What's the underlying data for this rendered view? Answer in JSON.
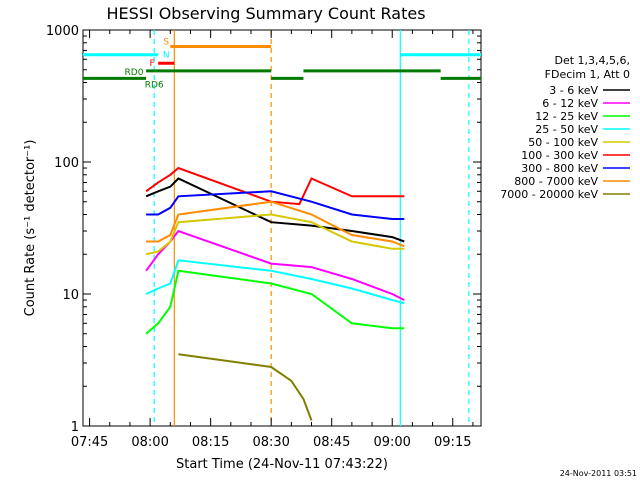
{
  "chart_data": {
    "type": "line",
    "title": "HESSI Observing Summary Count Rates",
    "xlabel": "Start Time (24-Nov-11 07:43:22)",
    "ylabel": "Count Rate (s⁻¹ detector⁻¹)",
    "y_scale": "log",
    "ylim": [
      1,
      1000
    ],
    "xlim": [
      "07:43:22",
      "09:22:00"
    ],
    "x_tick_labels": [
      "07:45",
      "08:00",
      "08:15",
      "08:30",
      "08:45",
      "09:00",
      "09:15"
    ],
    "y_tick_labels": [
      "1",
      "10",
      "100",
      "1000"
    ],
    "grid": false,
    "legend_position": "right",
    "legend_header": [
      "Det 1,3,4,5,6,",
      "FDecim 1, Att 0"
    ],
    "footer": "24-Nov-2011 03:51",
    "series": [
      {
        "name": "3 - 6 keV",
        "color": "#000000",
        "x": [
          "07:59",
          "08:02",
          "08:05",
          "08:07",
          "08:30",
          "08:40",
          "08:50",
          "09:00",
          "09:03"
        ],
        "values": [
          55,
          60,
          65,
          75,
          35,
          33,
          30,
          27,
          25
        ]
      },
      {
        "name": "6 - 12 keV",
        "color": "#ff00ff",
        "x": [
          "07:59",
          "08:02",
          "08:05",
          "08:07",
          "08:30",
          "08:40",
          "08:50",
          "09:00",
          "09:03"
        ],
        "values": [
          15,
          20,
          25,
          30,
          17,
          16,
          13,
          10,
          9
        ]
      },
      {
        "name": "12 - 25 keV",
        "color": "#00ff00",
        "x": [
          "07:59",
          "08:02",
          "08:05",
          "08:07",
          "08:30",
          "08:40",
          "08:50",
          "09:00",
          "09:03"
        ],
        "values": [
          5,
          6,
          8,
          15,
          12,
          10,
          6,
          5.5,
          5.5
        ]
      },
      {
        "name": "25 - 50 keV",
        "color": "#00ffff",
        "x": [
          "07:59",
          "08:02",
          "08:05",
          "08:07",
          "08:30",
          "08:40",
          "08:50",
          "09:00",
          "09:03"
        ],
        "values": [
          10,
          11,
          12,
          18,
          15,
          13,
          11,
          9,
          8.5
        ]
      },
      {
        "name": "50 - 100 keV",
        "color": "#d4c800",
        "x": [
          "07:59",
          "08:02",
          "08:05",
          "08:07",
          "08:30",
          "08:40",
          "08:50",
          "09:00",
          "09:03"
        ],
        "values": [
          20,
          21,
          25,
          35,
          40,
          35,
          25,
          22,
          22
        ]
      },
      {
        "name": "100 - 300 keV",
        "color": "#ff0000",
        "x": [
          "07:59",
          "08:02",
          "08:05",
          "08:07",
          "08:30",
          "08:37",
          "08:40",
          "08:50",
          "09:00",
          "09:03"
        ],
        "values": [
          60,
          70,
          80,
          90,
          50,
          48,
          75,
          55,
          55,
          55
        ]
      },
      {
        "name": "300 - 800 keV",
        "color": "#0000ff",
        "x": [
          "07:59",
          "08:02",
          "08:05",
          "08:07",
          "08:30",
          "08:40",
          "08:50",
          "09:00",
          "09:03"
        ],
        "values": [
          40,
          40,
          45,
          55,
          60,
          50,
          40,
          37,
          37
        ]
      },
      {
        "name": "800 - 7000 keV",
        "color": "#ff8c00",
        "x": [
          "07:59",
          "08:02",
          "08:05",
          "08:07",
          "08:30",
          "08:40",
          "08:50",
          "09:00",
          "09:03"
        ],
        "values": [
          25,
          25,
          28,
          40,
          50,
          40,
          28,
          25,
          23
        ]
      },
      {
        "name": "7000 - 20000 keV",
        "color": "#808000",
        "x": [
          "08:07",
          "08:30",
          "08:35",
          "08:38",
          "08:40"
        ],
        "values": [
          3.5,
          2.8,
          2.2,
          1.6,
          1.1
        ]
      }
    ],
    "state_bars": [
      {
        "label": "S",
        "color": "#ff8c00",
        "level": 750,
        "segments": [
          [
            "08:05",
            "08:30"
          ]
        ]
      },
      {
        "label": "N",
        "color": "#00ffff",
        "level": 650,
        "segments": [
          [
            "07:43:22",
            "08:02"
          ],
          [
            "09:02",
            "09:22"
          ]
        ]
      },
      {
        "label": "F",
        "color": "#ff0000",
        "level": 560,
        "segments": [
          [
            "08:02",
            "08:06"
          ]
        ]
      },
      {
        "label": "RD0",
        "color": "#007a00",
        "level": 490,
        "segments": [
          [
            "07:59",
            "08:30"
          ],
          [
            "08:38",
            "09:12"
          ]
        ]
      },
      {
        "label": "RD6",
        "color": "#007a00",
        "level": 430,
        "segments": [
          [
            "07:43:22",
            "07:59"
          ],
          [
            "08:30",
            "08:38"
          ],
          [
            "09:12",
            "09:22"
          ]
        ]
      }
    ],
    "vertical_markers": [
      {
        "x": "08:01",
        "color": "#00ffff",
        "style": "dashed"
      },
      {
        "x": "08:06",
        "color": "#ff8c00",
        "style": "solid"
      },
      {
        "x": "08:30",
        "color": "#ff8c00",
        "style": "dashed"
      },
      {
        "x": "09:02",
        "color": "#00ffff",
        "style": "solid"
      },
      {
        "x": "09:19",
        "color": "#00ffff",
        "style": "dashed"
      }
    ]
  }
}
